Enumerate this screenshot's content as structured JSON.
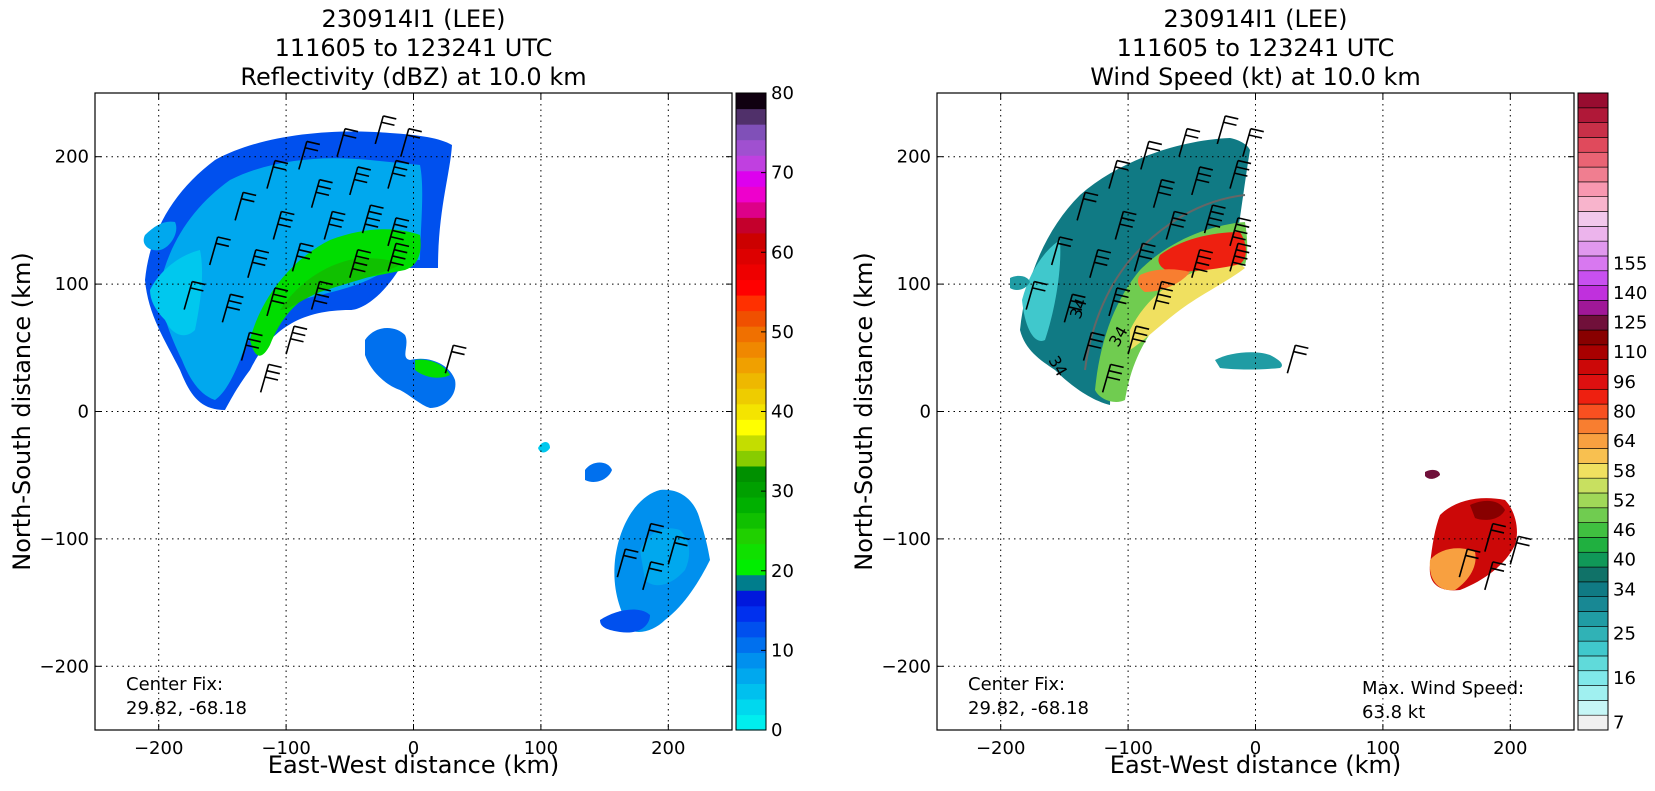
{
  "colors": {
    "refl_scale": [
      "#00eeee",
      "#00d8ee",
      "#00c0ee",
      "#00a8ee",
      "#0090ee",
      "#0070ee",
      "#0050ee",
      "#0030ee",
      "#0018dd",
      "#007d8c",
      "#00ee00",
      "#10e000",
      "#20d000",
      "#10c000",
      "#00b000",
      "#00a000",
      "#009000",
      "#88cc00",
      "#c4dd00",
      "#ffff00",
      "#f4e400",
      "#eecc00",
      "#eeb800",
      "#f0a000",
      "#f08800",
      "#f07000",
      "#f05000",
      "#ff3000",
      "#ff0000",
      "#ee0000",
      "#dd0000",
      "#cc0000",
      "#c4002c",
      "#dd0088",
      "#ee00cc",
      "#dd00ee",
      "#c040e0",
      "#a050d0",
      "#8050b8",
      "#50306a",
      "#100010"
    ],
    "wind_scale": [
      "#f0f0f0",
      "#c6f6f6",
      "#a0f0f0",
      "#80e8ea",
      "#60dada",
      "#40c8cc",
      "#30b2b6",
      "#209ca4",
      "#188894",
      "#107a84",
      "#107268",
      "#109858",
      "#20b040",
      "#40c040",
      "#70cc50",
      "#a0d858",
      "#c8e060",
      "#f0e060",
      "#f8c050",
      "#f8a040",
      "#f87e30",
      "#f85020",
      "#ee2010",
      "#dd1010",
      "#cc0808",
      "#a80000",
      "#880000",
      "#70103a",
      "#a01898",
      "#c030dd",
      "#c850f0",
      "#d878f0",
      "#e098ee",
      "#ecb4ec",
      "#f2c8ec",
      "#f8b4cc",
      "#f898b0",
      "#f07e90",
      "#ea6474",
      "#e04a5c",
      "#c83048",
      "#b01838",
      "#980c30"
    ]
  },
  "chart_data": [
    {
      "type": "heatmap",
      "title": [
        "230914I1 (LEE)",
        "111605 to 123241 UTC",
        "Reflectivity (dBZ) at 10.0 km"
      ],
      "xlabel": "East-West distance (km)",
      "ylabel": "North-South distance (km)",
      "xlim": [
        -250,
        250
      ],
      "ylim": [
        -250,
        250
      ],
      "xticks": [
        -200,
        -100,
        0,
        100,
        200
      ],
      "yticks": [
        -200,
        -100,
        0,
        100,
        200
      ],
      "xtick_labels": [
        "−200",
        "−100",
        "0",
        "100",
        "200"
      ],
      "ytick_labels": [
        "−200",
        "−100",
        "0",
        "100",
        "200"
      ],
      "grid": true,
      "annotation": [
        "Center Fix:",
        "29.82, -68.18"
      ],
      "colorbar": {
        "range": [
          0,
          80
        ],
        "ticks": [
          "0",
          "10",
          "20",
          "30",
          "40",
          "50",
          "60",
          "70",
          "80"
        ],
        "tick_values": [
          0,
          10,
          20,
          30,
          40,
          50,
          60,
          70,
          80
        ]
      },
      "barbs": [
        {
          "x": -180,
          "y": 80,
          "flags": 2
        },
        {
          "x": -160,
          "y": 115,
          "flags": 2
        },
        {
          "x": -140,
          "y": 150,
          "flags": 2
        },
        {
          "x": -115,
          "y": 175,
          "flags": 2
        },
        {
          "x": -90,
          "y": 190,
          "flags": 2
        },
        {
          "x": -60,
          "y": 200,
          "flags": 2
        },
        {
          "x": -30,
          "y": 210,
          "flags": 2
        },
        {
          "x": -10,
          "y": 200,
          "flags": 2
        },
        {
          "x": -150,
          "y": 70,
          "flags": 3
        },
        {
          "x": -130,
          "y": 105,
          "flags": 3
        },
        {
          "x": -110,
          "y": 135,
          "flags": 3
        },
        {
          "x": -80,
          "y": 160,
          "flags": 3
        },
        {
          "x": -50,
          "y": 170,
          "flags": 3
        },
        {
          "x": -20,
          "y": 175,
          "flags": 3
        },
        {
          "x": -135,
          "y": 40,
          "flags": 3
        },
        {
          "x": -115,
          "y": 75,
          "flags": 3
        },
        {
          "x": -95,
          "y": 110,
          "flags": 3
        },
        {
          "x": -70,
          "y": 135,
          "flags": 3
        },
        {
          "x": -40,
          "y": 140,
          "flags": 4
        },
        {
          "x": -20,
          "y": 130,
          "flags": 4
        },
        {
          "x": -120,
          "y": 15,
          "flags": 3
        },
        {
          "x": -100,
          "y": 45,
          "flags": 3
        },
        {
          "x": -80,
          "y": 80,
          "flags": 4
        },
        {
          "x": -50,
          "y": 105,
          "flags": 4
        },
        {
          "x": -20,
          "y": 110,
          "flags": 4
        },
        {
          "x": 25,
          "y": 30,
          "flags": 2
        },
        {
          "x": 180,
          "y": -110,
          "flags": 2
        },
        {
          "x": 160,
          "y": -130,
          "flags": 2
        },
        {
          "x": 200,
          "y": -120,
          "flags": 2
        },
        {
          "x": 180,
          "y": -140,
          "flags": 2
        }
      ]
    },
    {
      "type": "heatmap",
      "title": [
        "230914I1 (LEE)",
        "111605 to 123241 UTC",
        "Wind Speed (kt) at 10.0 km"
      ],
      "xlabel": "East-West distance (km)",
      "ylabel": "North-South distance (km)",
      "xlim": [
        -250,
        250
      ],
      "ylim": [
        -250,
        250
      ],
      "xticks": [
        -200,
        -100,
        0,
        100,
        200
      ],
      "yticks": [
        -200,
        -100,
        0,
        100,
        200
      ],
      "xtick_labels": [
        "−200",
        "−100",
        "0",
        "100",
        "200"
      ],
      "ytick_labels": [
        "−200",
        "−100",
        "0",
        "100",
        "200"
      ],
      "grid": true,
      "annotation": [
        "Center Fix:",
        "29.82, -68.18"
      ],
      "annotation2": [
        "Max. Wind Speed:",
        "63.8 kt"
      ],
      "contour_labels": [
        "34",
        "34",
        "34"
      ],
      "colorbar": {
        "levels": 43,
        "ticks": [
          "7",
          "16",
          "25",
          "34",
          "40",
          "46",
          "52",
          "58",
          "64",
          "80",
          "96",
          "110",
          "125",
          "140",
          "155"
        ],
        "tick_levels": [
          0,
          3,
          6,
          9,
          11,
          13,
          15,
          17,
          19,
          21,
          23,
          25,
          27,
          29,
          31
        ]
      },
      "barbs": [
        {
          "x": -180,
          "y": 80,
          "flags": 2
        },
        {
          "x": -160,
          "y": 115,
          "flags": 2
        },
        {
          "x": -140,
          "y": 150,
          "flags": 2
        },
        {
          "x": -115,
          "y": 175,
          "flags": 2
        },
        {
          "x": -90,
          "y": 190,
          "flags": 2
        },
        {
          "x": -60,
          "y": 200,
          "flags": 2
        },
        {
          "x": -30,
          "y": 210,
          "flags": 2
        },
        {
          "x": -10,
          "y": 200,
          "flags": 2
        },
        {
          "x": -150,
          "y": 70,
          "flags": 3
        },
        {
          "x": -130,
          "y": 105,
          "flags": 3
        },
        {
          "x": -110,
          "y": 135,
          "flags": 3
        },
        {
          "x": -80,
          "y": 160,
          "flags": 3
        },
        {
          "x": -50,
          "y": 170,
          "flags": 3
        },
        {
          "x": -20,
          "y": 175,
          "flags": 3
        },
        {
          "x": -135,
          "y": 40,
          "flags": 3
        },
        {
          "x": -115,
          "y": 75,
          "flags": 3
        },
        {
          "x": -95,
          "y": 110,
          "flags": 3
        },
        {
          "x": -70,
          "y": 135,
          "flags": 3
        },
        {
          "x": -40,
          "y": 140,
          "flags": 4
        },
        {
          "x": -20,
          "y": 130,
          "flags": 4
        },
        {
          "x": -120,
          "y": 15,
          "flags": 3
        },
        {
          "x": -100,
          "y": 45,
          "flags": 3
        },
        {
          "x": -80,
          "y": 80,
          "flags": 4
        },
        {
          "x": -50,
          "y": 105,
          "flags": 4
        },
        {
          "x": -20,
          "y": 110,
          "flags": 4
        },
        {
          "x": 25,
          "y": 30,
          "flags": 2
        },
        {
          "x": 180,
          "y": -110,
          "flags": 2
        },
        {
          "x": 160,
          "y": -130,
          "flags": 2
        },
        {
          "x": 200,
          "y": -120,
          "flags": 2
        },
        {
          "x": 180,
          "y": -140,
          "flags": 2
        }
      ]
    }
  ]
}
